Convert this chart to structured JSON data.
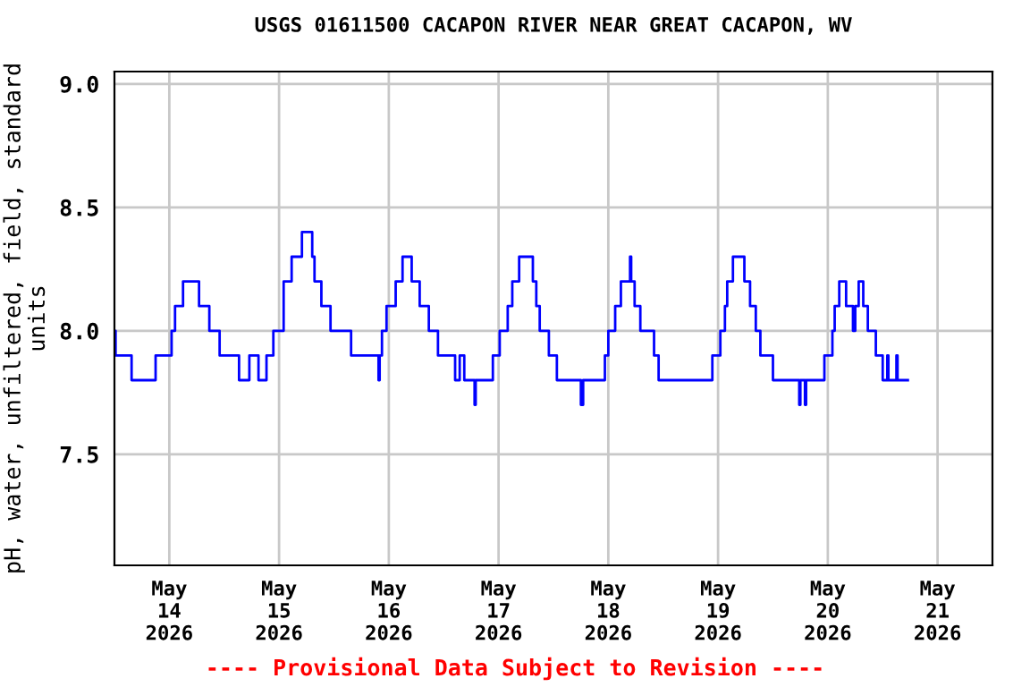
{
  "chart_data": {
    "type": "step",
    "title": "USGS 01611500 CACAPON RIVER NEAR GREAT CACAPON, WV",
    "ylabel": "pH, water, unfiltered, field, standard\nunits",
    "annotations": [
      "---- Provisional Data Subject to Revision ----"
    ],
    "xlim": [
      "2026-05-13T12:00",
      "2026-05-21T12:00"
    ],
    "xticks": [
      {
        "value": "2026-05-14",
        "label": "May\n14\n2026"
      },
      {
        "value": "2026-05-15",
        "label": "May\n15\n2026"
      },
      {
        "value": "2026-05-16",
        "label": "May\n16\n2026"
      },
      {
        "value": "2026-05-17",
        "label": "May\n17\n2026"
      },
      {
        "value": "2026-05-18",
        "label": "May\n18\n2026"
      },
      {
        "value": "2026-05-19",
        "label": "May\n19\n2026"
      },
      {
        "value": "2026-05-20",
        "label": "May\n20\n2026"
      },
      {
        "value": "2026-05-21",
        "label": "May\n21\n2026"
      }
    ],
    "ylim": [
      7.05,
      9.05
    ],
    "yticks": [
      {
        "value": 7.5,
        "label": "7.5"
      },
      {
        "value": 8.0,
        "label": "8.0"
      },
      {
        "value": 8.5,
        "label": "8.5"
      },
      {
        "value": 9.0,
        "label": "9.0"
      }
    ],
    "grid": true,
    "legend": false,
    "series": [
      {
        "color": "#0000ff",
        "x": [
          "2026-05-13T12:00",
          "2026-05-13T12:15",
          "2026-05-13T15:45",
          "2026-05-13T21:00",
          "2026-05-14T00:30",
          "2026-05-14T01:15",
          "2026-05-14T03:00",
          "2026-05-14T06:30",
          "2026-05-14T08:45",
          "2026-05-14T11:00",
          "2026-05-14T15:15",
          "2026-05-14T17:30",
          "2026-05-14T19:30",
          "2026-05-14T21:15",
          "2026-05-14T22:45",
          "2026-05-15T01:00",
          "2026-05-15T02:45",
          "2026-05-15T05:00",
          "2026-05-15T07:15",
          "2026-05-15T07:45",
          "2026-05-15T09:15",
          "2026-05-15T11:15",
          "2026-05-15T15:45",
          "2026-05-15T21:45",
          "2026-05-15T22:00",
          "2026-05-15T22:30",
          "2026-05-15T23:30",
          "2026-05-16T01:30",
          "2026-05-16T03:00",
          "2026-05-16T05:00",
          "2026-05-16T06:45",
          "2026-05-16T08:45",
          "2026-05-16T10:45",
          "2026-05-16T14:30",
          "2026-05-16T15:30",
          "2026-05-16T16:30",
          "2026-05-16T18:45",
          "2026-05-16T19:00",
          "2026-05-16T22:45",
          "2026-05-17T00:15",
          "2026-05-17T02:00",
          "2026-05-17T03:00",
          "2026-05-17T04:30",
          "2026-05-17T07:30",
          "2026-05-17T08:15",
          "2026-05-17T09:00",
          "2026-05-17T11:00",
          "2026-05-17T12:45",
          "2026-05-17T18:00",
          "2026-05-17T18:30",
          "2026-05-17T23:15",
          "2026-05-18T00:00",
          "2026-05-18T01:30",
          "2026-05-18T02:45",
          "2026-05-18T04:45",
          "2026-05-18T05:00",
          "2026-05-18T05:45",
          "2026-05-18T07:00",
          "2026-05-18T10:00",
          "2026-05-18T11:00",
          "2026-05-18T22:45",
          "2026-05-19T00:30",
          "2026-05-19T01:30",
          "2026-05-19T02:00",
          "2026-05-19T03:15",
          "2026-05-19T05:45",
          "2026-05-19T07:00",
          "2026-05-19T08:15",
          "2026-05-19T09:15",
          "2026-05-19T12:00",
          "2026-05-19T17:45",
          "2026-05-19T18:00",
          "2026-05-19T19:00",
          "2026-05-19T19:15",
          "2026-05-19T23:15",
          "2026-05-20T01:00",
          "2026-05-20T01:30",
          "2026-05-20T02:30",
          "2026-05-20T04:00",
          "2026-05-20T05:30",
          "2026-05-20T06:00",
          "2026-05-20T06:45",
          "2026-05-20T07:45",
          "2026-05-20T08:45",
          "2026-05-20T10:30",
          "2026-05-20T12:00",
          "2026-05-20T13:00",
          "2026-05-20T13:15",
          "2026-05-20T15:00",
          "2026-05-20T15:15",
          "2026-05-20T17:30"
        ],
        "values": [
          8.0,
          7.9,
          7.8,
          7.9,
          8.0,
          8.1,
          8.2,
          8.1,
          8.0,
          7.9,
          7.8,
          7.9,
          7.8,
          7.9,
          8.0,
          8.2,
          8.3,
          8.4,
          8.3,
          8.2,
          8.1,
          8.0,
          7.9,
          7.8,
          7.9,
          8.0,
          8.1,
          8.2,
          8.3,
          8.2,
          8.1,
          8.0,
          7.9,
          7.8,
          7.9,
          7.8,
          7.7,
          7.8,
          7.9,
          8.0,
          8.1,
          8.2,
          8.3,
          8.2,
          8.1,
          8.0,
          7.9,
          7.8,
          7.7,
          7.8,
          7.9,
          8.0,
          8.1,
          8.2,
          8.3,
          8.2,
          8.1,
          8.0,
          7.9,
          7.8,
          7.9,
          8.0,
          8.1,
          8.2,
          8.3,
          8.2,
          8.1,
          8.0,
          7.9,
          7.8,
          7.7,
          7.8,
          7.7,
          7.8,
          7.9,
          8.0,
          8.1,
          8.2,
          8.1,
          8.0,
          8.1,
          8.2,
          8.1,
          8.0,
          7.9,
          7.8,
          7.9,
          7.8,
          7.9,
          7.8,
          7.8
        ]
      }
    ]
  }
}
